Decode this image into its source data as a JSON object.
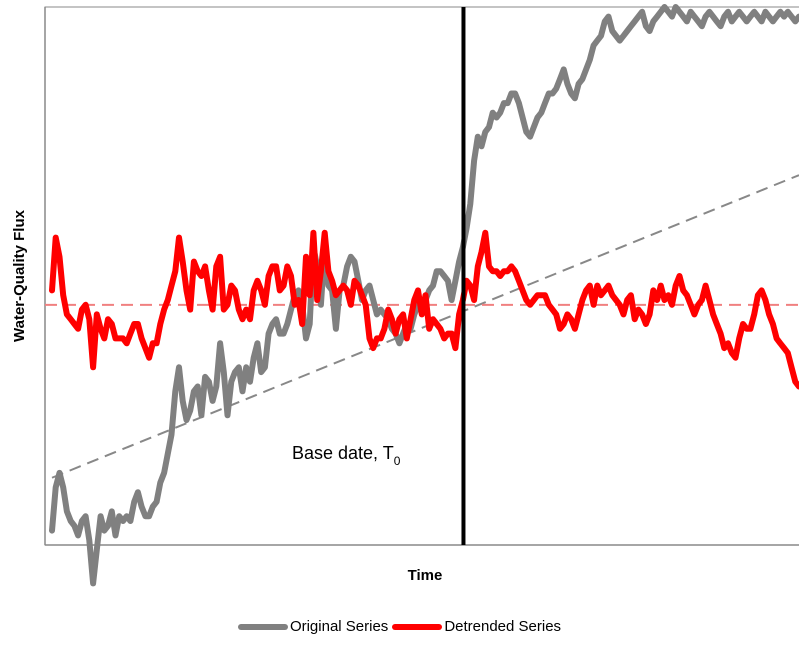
{
  "chart_data": {
    "type": "line",
    "xlabel": "Time",
    "ylabel": "Water-Quality Flux",
    "x_ticks": [],
    "y_ticks": [],
    "annotation": {
      "text": "Base date, T",
      "subscript": "0"
    },
    "base_date_position": 0.555,
    "trend_slope": 0.063,
    "trend_intercept": -0.36,
    "mean_level": 0.0,
    "ylim": [
      -0.5,
      0.62
    ],
    "series": [
      {
        "name": "Original Series",
        "color": "#808080",
        "x": [
          0,
          1,
          2,
          3,
          4,
          5,
          6,
          7,
          8,
          9,
          10,
          11,
          12,
          13,
          14,
          15,
          16,
          17,
          18,
          19,
          20,
          21,
          22,
          23,
          24,
          25,
          26,
          27,
          28,
          29,
          30,
          31,
          32,
          33,
          34,
          35,
          36,
          37,
          38,
          39,
          40,
          41,
          42,
          43,
          44,
          45,
          46,
          47,
          48,
          49,
          50,
          51,
          52,
          53,
          54,
          55,
          56,
          57,
          58,
          59,
          60,
          61,
          62,
          63,
          64,
          65,
          66,
          67,
          68,
          69,
          70,
          71,
          72,
          73,
          74,
          75,
          76,
          77,
          78,
          79,
          80,
          81,
          82,
          83,
          84,
          85,
          86,
          87,
          88,
          89,
          90,
          91,
          92,
          93,
          94,
          95,
          96,
          97,
          98,
          99,
          100,
          101,
          102,
          103,
          104,
          105,
          106,
          107,
          108,
          109,
          110,
          111,
          112,
          113,
          114,
          115,
          116,
          117,
          118,
          119,
          120,
          121,
          122,
          123,
          124,
          125,
          126,
          127,
          128,
          129,
          130,
          131,
          132,
          133,
          134,
          135,
          136,
          137,
          138,
          139,
          140,
          141,
          142,
          143,
          144,
          145,
          146,
          147,
          148,
          149,
          150,
          151,
          152,
          153,
          154,
          155,
          156,
          157,
          158,
          159,
          160,
          161,
          162,
          163,
          164,
          165,
          166,
          167,
          168,
          169,
          170,
          171,
          172,
          173,
          174,
          175,
          176,
          177,
          178,
          179,
          180,
          181,
          182,
          183,
          184,
          185,
          186,
          187,
          188,
          189,
          190,
          191,
          192,
          193,
          194,
          195,
          196,
          197,
          198,
          199,
          200
        ],
        "values": [
          -0.47,
          -0.38,
          -0.35,
          -0.38,
          -0.43,
          -0.45,
          -0.46,
          -0.48,
          -0.45,
          -0.44,
          -0.49,
          -0.58,
          -0.51,
          -0.44,
          -0.47,
          -0.46,
          -0.43,
          -0.48,
          -0.44,
          -0.45,
          -0.44,
          -0.45,
          -0.41,
          -0.39,
          -0.42,
          -0.44,
          -0.44,
          -0.42,
          -0.41,
          -0.37,
          -0.35,
          -0.31,
          -0.27,
          -0.18,
          -0.13,
          -0.2,
          -0.24,
          -0.22,
          -0.18,
          -0.17,
          -0.23,
          -0.15,
          -0.16,
          -0.2,
          -0.17,
          -0.08,
          -0.14,
          -0.23,
          -0.16,
          -0.14,
          -0.13,
          -0.18,
          -0.13,
          -0.16,
          -0.11,
          -0.08,
          -0.14,
          -0.13,
          -0.06,
          -0.04,
          -0.03,
          -0.06,
          -0.06,
          -0.04,
          -0.01,
          0.02,
          0.03,
          0.0,
          -0.07,
          -0.04,
          0.12,
          0.08,
          0.0,
          0.12,
          0.04,
          0.03,
          -0.05,
          0.03,
          0.04,
          0.08,
          0.1,
          0.09,
          0.05,
          0.01,
          0.03,
          0.04,
          0.01,
          -0.02,
          -0.01,
          -0.02,
          -0.03,
          -0.05,
          -0.06,
          -0.08,
          -0.06,
          -0.04,
          -0.05,
          -0.02,
          0.0,
          0.0,
          0.01,
          0.03,
          0.04,
          0.07,
          0.07,
          0.06,
          0.05,
          0.01,
          0.05,
          0.09,
          0.12,
          0.16,
          0.21,
          0.3,
          0.35,
          0.33,
          0.36,
          0.37,
          0.4,
          0.39,
          0.4,
          0.42,
          0.42,
          0.44,
          0.44,
          0.42,
          0.39,
          0.36,
          0.35,
          0.37,
          0.39,
          0.4,
          0.42,
          0.44,
          0.44,
          0.45,
          0.47,
          0.49,
          0.46,
          0.44,
          0.43,
          0.46,
          0.47,
          0.49,
          0.51,
          0.54,
          0.55,
          0.56,
          0.59,
          0.6,
          0.57,
          0.56,
          0.55,
          0.56,
          0.57,
          0.58,
          0.59,
          0.6,
          0.61,
          0.58,
          0.57,
          0.59,
          0.6,
          0.61,
          0.62,
          0.61,
          0.6,
          0.62,
          0.61,
          0.6,
          0.59,
          0.61,
          0.6,
          0.59,
          0.58,
          0.6,
          0.61,
          0.6,
          0.59,
          0.58,
          0.6,
          0.61,
          0.59,
          0.6,
          0.61,
          0.6,
          0.59,
          0.6,
          0.61,
          0.6,
          0.59,
          0.61,
          0.6,
          0.59,
          0.6,
          0.61,
          0.6,
          0.61,
          0.6,
          0.59,
          0.6
        ]
      },
      {
        "name": "Detrended Series",
        "color": "#ff0000",
        "x": [
          0,
          1,
          2,
          3,
          4,
          5,
          6,
          7,
          8,
          9,
          10,
          11,
          12,
          13,
          14,
          15,
          16,
          17,
          18,
          19,
          20,
          21,
          22,
          23,
          24,
          25,
          26,
          27,
          28,
          29,
          30,
          31,
          32,
          33,
          34,
          35,
          36,
          37,
          38,
          39,
          40,
          41,
          42,
          43,
          44,
          45,
          46,
          47,
          48,
          49,
          50,
          51,
          52,
          53,
          54,
          55,
          56,
          57,
          58,
          59,
          60,
          61,
          62,
          63,
          64,
          65,
          66,
          67,
          68,
          69,
          70,
          71,
          72,
          73,
          74,
          75,
          76,
          77,
          78,
          79,
          80,
          81,
          82,
          83,
          84,
          85,
          86,
          87,
          88,
          89,
          90,
          91,
          92,
          93,
          94,
          95,
          96,
          97,
          98,
          99,
          100,
          101,
          102,
          103,
          104,
          105,
          106,
          107,
          108,
          109,
          110,
          111,
          112,
          113,
          114,
          115,
          116,
          117,
          118,
          119,
          120,
          121,
          122,
          123,
          124,
          125,
          126,
          127,
          128,
          129,
          130,
          131,
          132,
          133,
          134,
          135,
          136,
          137,
          138,
          139,
          140,
          141,
          142,
          143,
          144,
          145,
          146,
          147,
          148,
          149,
          150,
          151,
          152,
          153,
          154,
          155,
          156,
          157,
          158,
          159,
          160,
          161,
          162,
          163,
          164,
          165,
          166,
          167,
          168,
          169,
          170,
          171,
          172,
          173,
          174,
          175,
          176,
          177,
          178,
          179,
          180,
          181,
          182,
          183,
          184,
          185,
          186,
          187,
          188,
          189,
          190,
          191,
          192,
          193,
          194,
          195,
          196,
          197,
          198,
          199,
          200
        ],
        "values": [
          0.03,
          0.14,
          0.1,
          0.02,
          -0.02,
          -0.03,
          -0.04,
          -0.05,
          -0.01,
          0.0,
          -0.03,
          -0.13,
          -0.02,
          -0.05,
          -0.07,
          -0.03,
          -0.04,
          -0.07,
          -0.07,
          -0.07,
          -0.08,
          -0.06,
          -0.04,
          -0.04,
          -0.07,
          -0.09,
          -0.11,
          -0.08,
          -0.08,
          -0.04,
          -0.01,
          0.01,
          0.04,
          0.07,
          0.14,
          0.09,
          0.03,
          -0.01,
          0.09,
          0.07,
          0.06,
          0.08,
          0.03,
          -0.01,
          0.08,
          0.1,
          -0.01,
          0.0,
          0.04,
          0.03,
          -0.01,
          -0.03,
          -0.01,
          -0.03,
          0.03,
          0.05,
          0.03,
          0.0,
          0.06,
          0.08,
          0.08,
          0.03,
          0.04,
          0.08,
          0.06,
          0.0,
          0.01,
          -0.04,
          0.1,
          0.02,
          0.15,
          0.01,
          0.07,
          0.15,
          0.07,
          0.05,
          0.02,
          0.03,
          0.04,
          0.03,
          0.0,
          0.05,
          0.04,
          0.02,
          0.0,
          -0.07,
          -0.09,
          -0.07,
          -0.07,
          -0.05,
          -0.01,
          -0.03,
          -0.06,
          -0.03,
          -0.02,
          -0.07,
          -0.03,
          0.01,
          0.03,
          -0.02,
          0.02,
          -0.05,
          -0.03,
          -0.04,
          -0.05,
          -0.07,
          -0.06,
          -0.06,
          -0.09,
          -0.02,
          0.01,
          0.05,
          0.04,
          0.01,
          0.08,
          0.11,
          0.15,
          0.08,
          0.07,
          0.07,
          0.06,
          0.07,
          0.07,
          0.08,
          0.07,
          0.05,
          0.03,
          0.01,
          0.0,
          0.01,
          0.02,
          0.02,
          0.02,
          0.0,
          -0.01,
          -0.02,
          -0.05,
          -0.04,
          -0.02,
          -0.03,
          -0.05,
          -0.02,
          0.01,
          0.03,
          0.04,
          0.0,
          0.04,
          0.02,
          0.03,
          0.04,
          0.02,
          0.01,
          0.0,
          -0.02,
          0.01,
          0.02,
          -0.03,
          -0.01,
          -0.02,
          -0.04,
          -0.02,
          0.03,
          0.01,
          0.04,
          0.01,
          0.02,
          0.0,
          0.04,
          0.06,
          0.03,
          0.02,
          0.0,
          -0.02,
          0.0,
          0.01,
          0.04,
          0.01,
          -0.02,
          -0.04,
          -0.06,
          -0.09,
          -0.08,
          -0.1,
          -0.11,
          -0.07,
          -0.04,
          -0.05,
          -0.05,
          -0.02,
          0.02,
          0.03,
          0.01,
          -0.02,
          -0.04,
          -0.07,
          -0.08,
          -0.09,
          -0.1,
          -0.13,
          -0.16,
          -0.17
        ]
      }
    ]
  }
}
